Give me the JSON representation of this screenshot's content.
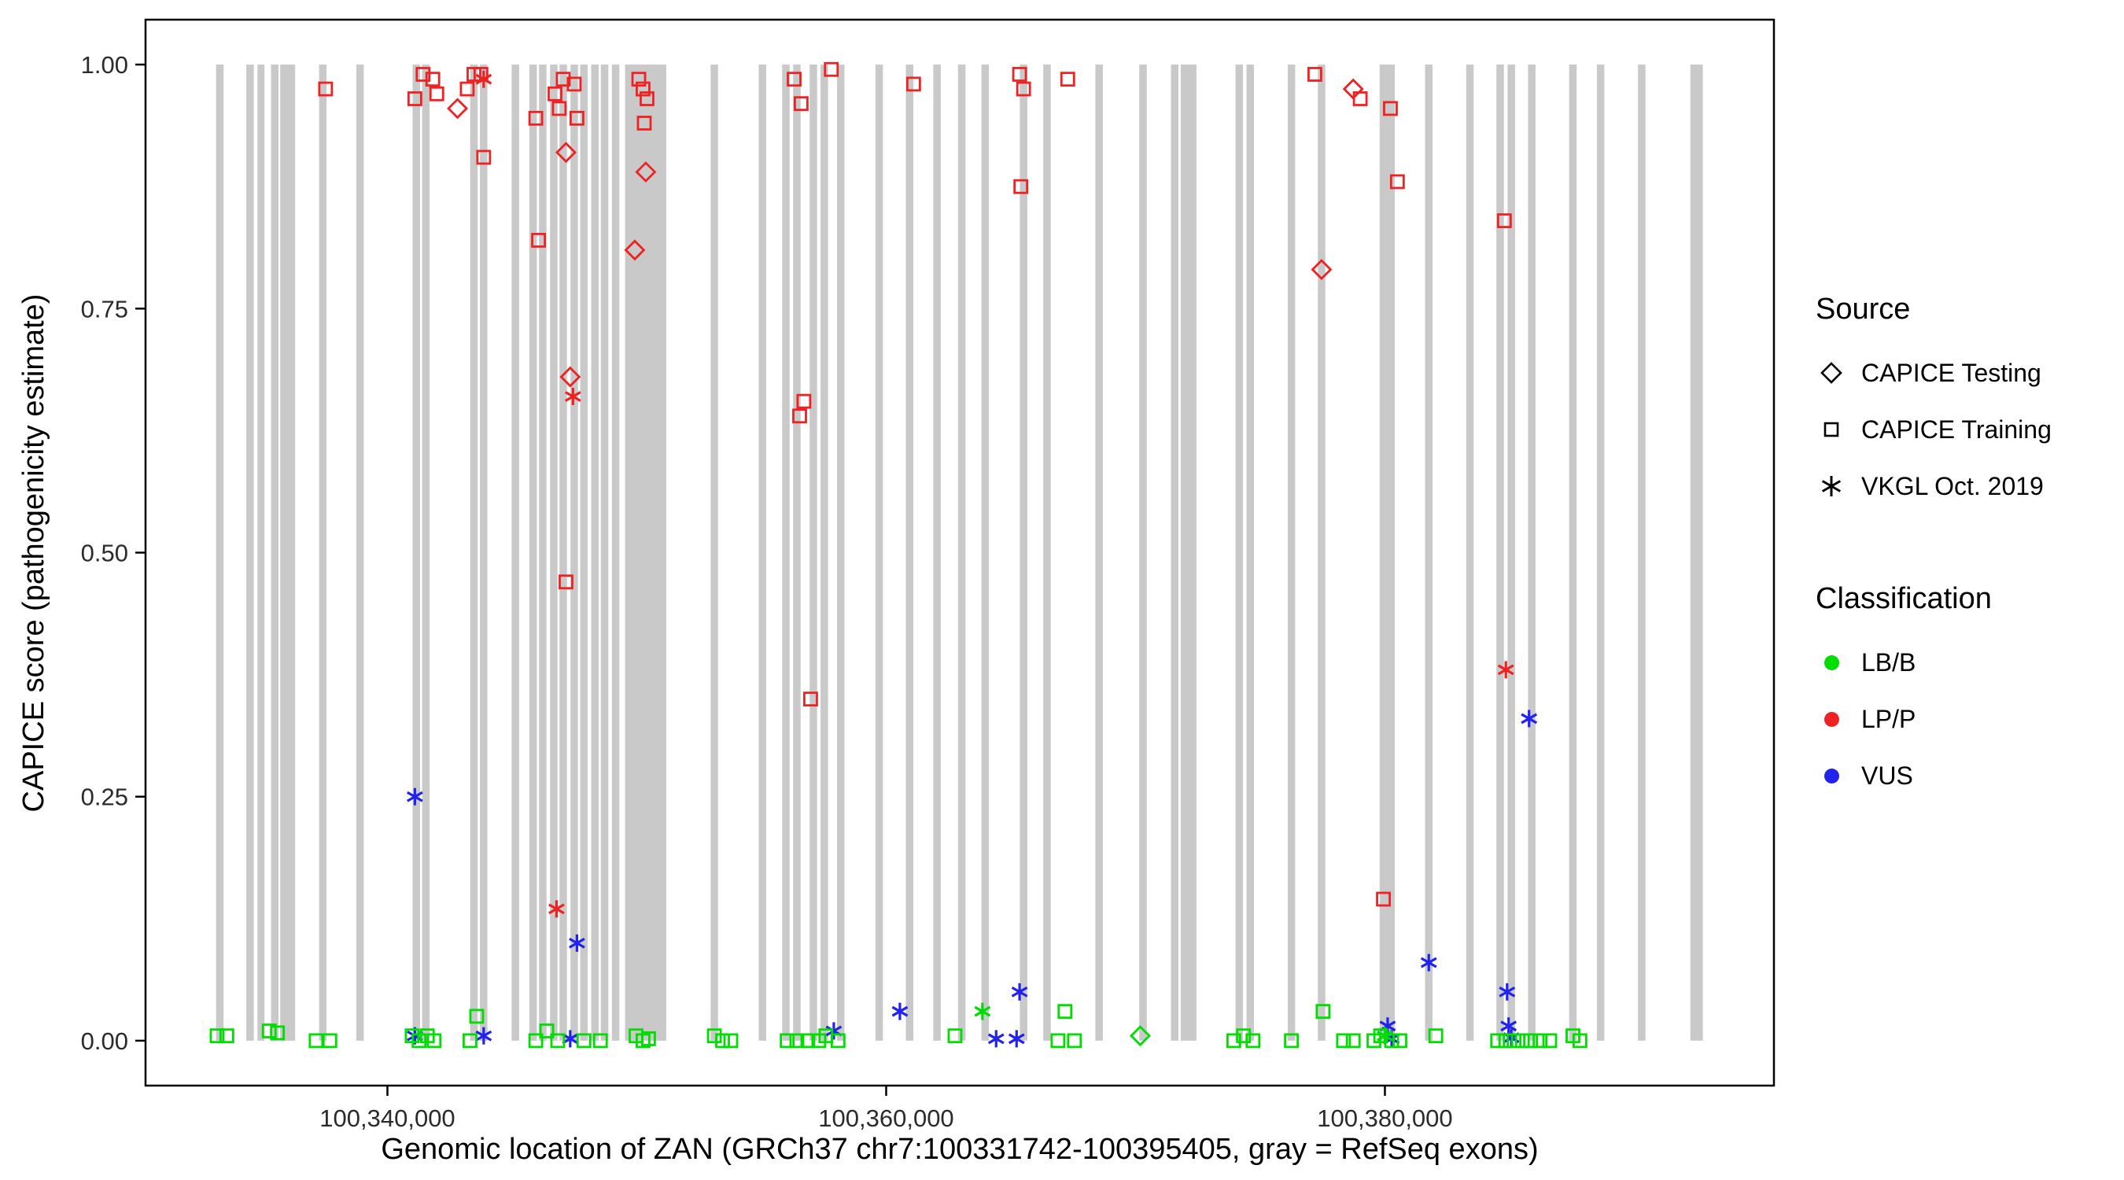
{
  "chart_data": {
    "type": "scatter",
    "title": "",
    "xlabel": "Genomic location of ZAN (GRCh37 chr7:100331742-100395405, gray = RefSeq exons)",
    "ylabel": "CAPICE score (pathogenicity estimate)",
    "xlim": [
      100330300,
      100395600
    ],
    "ylim": [
      -0.046,
      1.046
    ],
    "grid": false,
    "legend_position": "right",
    "x_ticks": [
      {
        "value": 100340000,
        "label": "100,340,000"
      },
      {
        "value": 100360000,
        "label": "100,360,000"
      },
      {
        "value": 100380000,
        "label": "100,380,000"
      }
    ],
    "y_ticks": [
      {
        "value": 0.0,
        "label": "0.00"
      },
      {
        "value": 0.25,
        "label": "0.25"
      },
      {
        "value": 0.5,
        "label": "0.50"
      },
      {
        "value": 0.75,
        "label": "0.75"
      },
      {
        "value": 1.0,
        "label": "1.00"
      }
    ],
    "exon_color": "#c9c9c9",
    "exons": [
      [
        100333130,
        100333430
      ],
      [
        100334340,
        100334640
      ],
      [
        100334790,
        100335070
      ],
      [
        100335330,
        100335630
      ],
      [
        100335700,
        100336300
      ],
      [
        100337260,
        100337560
      ],
      [
        100338750,
        100339050
      ],
      [
        100341010,
        100341310
      ],
      [
        100341390,
        100341690
      ],
      [
        100343320,
        100343620
      ],
      [
        100343710,
        100344010
      ],
      [
        100344980,
        100345280
      ],
      [
        100345690,
        100345990
      ],
      [
        100346080,
        100346380
      ],
      [
        100346520,
        100346820
      ],
      [
        100346900,
        100347200
      ],
      [
        100347340,
        100347640
      ],
      [
        100347730,
        100348030
      ],
      [
        100348170,
        100348470
      ],
      [
        100348560,
        100348860
      ],
      [
        100349000,
        100349300
      ],
      [
        100349530,
        100351180
      ],
      [
        100352960,
        100353260
      ],
      [
        100354890,
        100355190
      ],
      [
        100355830,
        100356130
      ],
      [
        100356270,
        100356570
      ],
      [
        100356930,
        100357230
      ],
      [
        100357370,
        100357670
      ],
      [
        100358030,
        100358330
      ],
      [
        100359570,
        100359870
      ],
      [
        100360790,
        100361090
      ],
      [
        100361890,
        100362190
      ],
      [
        100362880,
        100363180
      ],
      [
        100363820,
        100364120
      ],
      [
        100365360,
        100365660
      ],
      [
        100366300,
        100366600
      ],
      [
        100368390,
        100368690
      ],
      [
        100370150,
        100370450
      ],
      [
        100371420,
        100371720
      ],
      [
        100371810,
        100372440
      ],
      [
        100374010,
        100374310
      ],
      [
        100374450,
        100374750
      ],
      [
        100376100,
        100376400
      ],
      [
        100377310,
        100377610
      ],
      [
        100379790,
        100380400
      ],
      [
        100381610,
        100381910
      ],
      [
        100383260,
        100383560
      ],
      [
        100384470,
        100384770
      ],
      [
        100384920,
        100385220
      ],
      [
        100385740,
        100386040
      ],
      [
        100387390,
        100387690
      ],
      [
        100388500,
        100388800
      ],
      [
        100390150,
        100390450
      ],
      [
        100392250,
        100392750
      ]
    ],
    "classification_colors": {
      "LB/B": "#00dd00",
      "LP/P": "#ee2222",
      "VUS": "#2222ee"
    },
    "marker_shapes": {
      "CAPICE Testing": "diamond",
      "CAPICE Training": "square",
      "VKGL Oct. 2019": "asterisk"
    },
    "points_format": [
      "genomic_position",
      "capice_score",
      "shape",
      "classification"
    ],
    "points": [
      [
        100337520,
        0.975,
        "square",
        "LP/P"
      ],
      [
        100341100,
        0.965,
        "square",
        "LP/P"
      ],
      [
        100341430,
        0.99,
        "square",
        "LP/P"
      ],
      [
        100341820,
        0.985,
        "square",
        "LP/P"
      ],
      [
        100341980,
        0.97,
        "square",
        "LP/P"
      ],
      [
        100343200,
        0.975,
        "square",
        "LP/P"
      ],
      [
        100343470,
        0.99,
        "square",
        "LP/P"
      ],
      [
        100343750,
        0.99,
        "square",
        "LP/P"
      ],
      [
        100343860,
        0.905,
        "square",
        "LP/P"
      ],
      [
        100345950,
        0.945,
        "square",
        "LP/P"
      ],
      [
        100346060,
        0.82,
        "square",
        "LP/P"
      ],
      [
        100346720,
        0.97,
        "square",
        "LP/P"
      ],
      [
        100346890,
        0.955,
        "square",
        "LP/P"
      ],
      [
        100347050,
        0.985,
        "square",
        "LP/P"
      ],
      [
        100347490,
        0.98,
        "square",
        "LP/P"
      ],
      [
        100347600,
        0.945,
        "square",
        "LP/P"
      ],
      [
        100347160,
        0.47,
        "square",
        "LP/P"
      ],
      [
        100350080,
        0.985,
        "square",
        "LP/P"
      ],
      [
        100350250,
        0.975,
        "square",
        "LP/P"
      ],
      [
        100350410,
        0.965,
        "square",
        "LP/P"
      ],
      [
        100350300,
        0.94,
        "square",
        "LP/P"
      ],
      [
        100356310,
        0.985,
        "square",
        "LP/P"
      ],
      [
        100356590,
        0.96,
        "square",
        "LP/P"
      ],
      [
        100356700,
        0.655,
        "square",
        "LP/P"
      ],
      [
        100356530,
        0.64,
        "square",
        "LP/P"
      ],
      [
        100356970,
        0.35,
        "square",
        "LP/P"
      ],
      [
        100357800,
        0.995,
        "square",
        "LP/P"
      ],
      [
        100361100,
        0.98,
        "square",
        "LP/P"
      ],
      [
        100365350,
        0.99,
        "square",
        "LP/P"
      ],
      [
        100365510,
        0.975,
        "square",
        "LP/P"
      ],
      [
        100365400,
        0.875,
        "square",
        "LP/P"
      ],
      [
        100367280,
        0.985,
        "square",
        "LP/P"
      ],
      [
        100377190,
        0.99,
        "square",
        "LP/P"
      ],
      [
        100379010,
        0.965,
        "square",
        "LP/P"
      ],
      [
        100380220,
        0.955,
        "square",
        "LP/P"
      ],
      [
        100380500,
        0.88,
        "square",
        "LP/P"
      ],
      [
        100384790,
        0.84,
        "square",
        "LP/P"
      ],
      [
        100379940,
        0.145,
        "square",
        "LP/P"
      ],
      [
        100342810,
        0.955,
        "diamond",
        "LP/P"
      ],
      [
        100347160,
        0.91,
        "diamond",
        "LP/P"
      ],
      [
        100347330,
        0.68,
        "diamond",
        "LP/P"
      ],
      [
        100350360,
        0.89,
        "diamond",
        "LP/P"
      ],
      [
        100349920,
        0.81,
        "diamond",
        "LP/P"
      ],
      [
        100377460,
        0.79,
        "diamond",
        "LP/P"
      ],
      [
        100378730,
        0.975,
        "diamond",
        "LP/P"
      ],
      [
        100343860,
        0.985,
        "asterisk",
        "LP/P"
      ],
      [
        100347440,
        0.66,
        "asterisk",
        "LP/P"
      ],
      [
        100346780,
        0.135,
        "asterisk",
        "LP/P"
      ],
      [
        100384850,
        0.38,
        "asterisk",
        "LP/P"
      ],
      [
        100341100,
        0.25,
        "asterisk",
        "VUS"
      ],
      [
        100347600,
        0.1,
        "asterisk",
        "VUS"
      ],
      [
        100385780,
        0.33,
        "asterisk",
        "VUS"
      ],
      [
        100381760,
        0.08,
        "asterisk",
        "VUS"
      ],
      [
        100384900,
        0.05,
        "asterisk",
        "VUS"
      ],
      [
        100365350,
        0.05,
        "asterisk",
        "VUS"
      ],
      [
        100360550,
        0.03,
        "asterisk",
        "VUS"
      ],
      [
        100341100,
        0.005,
        "asterisk",
        "VUS"
      ],
      [
        100343860,
        0.005,
        "asterisk",
        "VUS"
      ],
      [
        100347330,
        0.002,
        "asterisk",
        "VUS"
      ],
      [
        100357900,
        0.01,
        "asterisk",
        "VUS"
      ],
      [
        100364410,
        0.002,
        "asterisk",
        "VUS"
      ],
      [
        100365230,
        0.002,
        "asterisk",
        "VUS"
      ],
      [
        100380110,
        0.015,
        "asterisk",
        "VUS"
      ],
      [
        100380270,
        0.002,
        "asterisk",
        "VUS"
      ],
      [
        100384960,
        0.015,
        "asterisk",
        "VUS"
      ],
      [
        100385070,
        0.003,
        "asterisk",
        "VUS"
      ],
      [
        100363860,
        0.03,
        "asterisk",
        "LB/B"
      ],
      [
        100380000,
        0.005,
        "asterisk",
        "LB/B"
      ],
      [
        100370190,
        0.005,
        "diamond",
        "LB/B"
      ],
      [
        100333170,
        0.005,
        "square",
        "LB/B"
      ],
      [
        100333560,
        0.005,
        "square",
        "LB/B"
      ],
      [
        100335260,
        0.01,
        "square",
        "LB/B"
      ],
      [
        100335590,
        0.008,
        "square",
        "LB/B"
      ],
      [
        100337140,
        0.0,
        "square",
        "LB/B"
      ],
      [
        100337690,
        0.0,
        "square",
        "LB/B"
      ],
      [
        100340990,
        0.005,
        "square",
        "LB/B"
      ],
      [
        100341270,
        0.0,
        "square",
        "LB/B"
      ],
      [
        100341600,
        0.005,
        "square",
        "LB/B"
      ],
      [
        100341870,
        0.0,
        "square",
        "LB/B"
      ],
      [
        100343310,
        0.0,
        "square",
        "LB/B"
      ],
      [
        100343580,
        0.025,
        "square",
        "LB/B"
      ],
      [
        100345950,
        0.0,
        "square",
        "LB/B"
      ],
      [
        100346390,
        0.01,
        "square",
        "LB/B"
      ],
      [
        100346830,
        0.0,
        "square",
        "LB/B"
      ],
      [
        100347880,
        0.0,
        "square",
        "LB/B"
      ],
      [
        100348540,
        0.0,
        "square",
        "LB/B"
      ],
      [
        100349970,
        0.005,
        "square",
        "LB/B"
      ],
      [
        100350250,
        0.0,
        "square",
        "LB/B"
      ],
      [
        100350470,
        0.002,
        "square",
        "LB/B"
      ],
      [
        100353110,
        0.005,
        "square",
        "LB/B"
      ],
      [
        100353440,
        0.0,
        "square",
        "LB/B"
      ],
      [
        100353770,
        0.0,
        "square",
        "LB/B"
      ],
      [
        100356030,
        0.0,
        "square",
        "LB/B"
      ],
      [
        100356420,
        0.0,
        "square",
        "LB/B"
      ],
      [
        100356860,
        0.0,
        "square",
        "LB/B"
      ],
      [
        100357300,
        0.0,
        "square",
        "LB/B"
      ],
      [
        100357580,
        0.005,
        "square",
        "LB/B"
      ],
      [
        100358070,
        0.0,
        "square",
        "LB/B"
      ],
      [
        100362760,
        0.005,
        "square",
        "LB/B"
      ],
      [
        100366890,
        0.0,
        "square",
        "LB/B"
      ],
      [
        100367170,
        0.03,
        "square",
        "LB/B"
      ],
      [
        100367550,
        0.0,
        "square",
        "LB/B"
      ],
      [
        100373940,
        0.0,
        "square",
        "LB/B"
      ],
      [
        100374330,
        0.005,
        "square",
        "LB/B"
      ],
      [
        100374710,
        0.0,
        "square",
        "LB/B"
      ],
      [
        100376250,
        0.0,
        "square",
        "LB/B"
      ],
      [
        100377520,
        0.03,
        "square",
        "LB/B"
      ],
      [
        100378340,
        0.0,
        "square",
        "LB/B"
      ],
      [
        100378730,
        0.0,
        "square",
        "LB/B"
      ],
      [
        100379560,
        0.0,
        "square",
        "LB/B"
      ],
      [
        100379830,
        0.005,
        "square",
        "LB/B"
      ],
      [
        100380270,
        0.0,
        "square",
        "LB/B"
      ],
      [
        100380600,
        0.0,
        "square",
        "LB/B"
      ],
      [
        100382040,
        0.005,
        "square",
        "LB/B"
      ],
      [
        100384520,
        0.0,
        "square",
        "LB/B"
      ],
      [
        100384850,
        0.0,
        "square",
        "LB/B"
      ],
      [
        100385180,
        0.0,
        "square",
        "LB/B"
      ],
      [
        100385510,
        0.0,
        "square",
        "LB/B"
      ],
      [
        100385840,
        0.0,
        "square",
        "LB/B"
      ],
      [
        100386220,
        0.0,
        "square",
        "LB/B"
      ],
      [
        100386610,
        0.0,
        "square",
        "LB/B"
      ],
      [
        100387540,
        0.005,
        "square",
        "LB/B"
      ],
      [
        100387820,
        0.0,
        "square",
        "LB/B"
      ]
    ],
    "legend": {
      "source": {
        "title": "Source",
        "items": [
          {
            "label": "CAPICE Testing",
            "shape": "diamond"
          },
          {
            "label": "CAPICE Training",
            "shape": "square"
          },
          {
            "label": "VKGL Oct. 2019",
            "shape": "asterisk"
          }
        ]
      },
      "classification": {
        "title": "Classification",
        "items": [
          {
            "label": "LB/B",
            "color": "#00dd00"
          },
          {
            "label": "LP/P",
            "color": "#ee2222"
          },
          {
            "label": "VUS",
            "color": "#2222ee"
          }
        ]
      }
    }
  }
}
